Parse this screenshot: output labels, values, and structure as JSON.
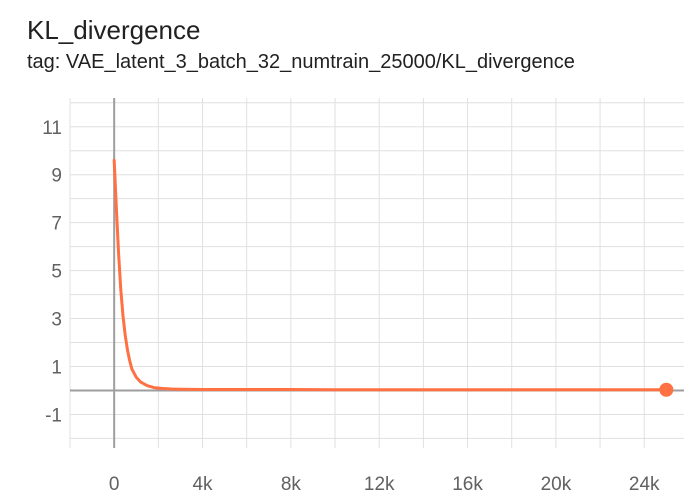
{
  "header": {
    "title": "KL_divergence",
    "tag": "tag: VAE_latent_3_batch_32_numtrain_25000/KL_divergence"
  },
  "colors": {
    "series": "#ff7043",
    "grid": "#e0e0e0",
    "zero_axis": "#9e9e9e",
    "tick_text": "#616161"
  },
  "chart_data": {
    "type": "line",
    "title": "KL_divergence",
    "subtitle": "tag: VAE_latent_3_batch_32_numtrain_25000/KL_divergence",
    "xlabel": "",
    "ylabel": "",
    "xlim": [
      -2000,
      25800
    ],
    "ylim": [
      -2.4,
      12.2
    ],
    "grid": true,
    "x_tick_labels": [
      "0",
      "4k",
      "8k",
      "12k",
      "16k",
      "20k",
      "24k"
    ],
    "y_tick_labels": [
      "11",
      "9",
      "7",
      "5",
      "3",
      "1",
      "-1"
    ],
    "series": [
      {
        "color": "#ff7043",
        "x": [
          0,
          100,
          200,
          300,
          400,
          500,
          600,
          700,
          800,
          1000,
          1200,
          1500,
          1800,
          2200,
          2600,
          3000,
          4000,
          6000,
          8000,
          10000,
          12000,
          14000,
          16000,
          18000,
          20000,
          22000,
          24000,
          25000
        ],
        "y": [
          9.6,
          7.6,
          5.7,
          4.2,
          3.1,
          2.3,
          1.7,
          1.25,
          0.9,
          0.55,
          0.35,
          0.2,
          0.12,
          0.08,
          0.06,
          0.05,
          0.04,
          0.04,
          0.04,
          0.03,
          0.03,
          0.03,
          0.03,
          0.03,
          0.03,
          0.03,
          0.03,
          0.03
        ]
      }
    ],
    "last_point": {
      "x": 25000,
      "y": 0.03
    }
  }
}
